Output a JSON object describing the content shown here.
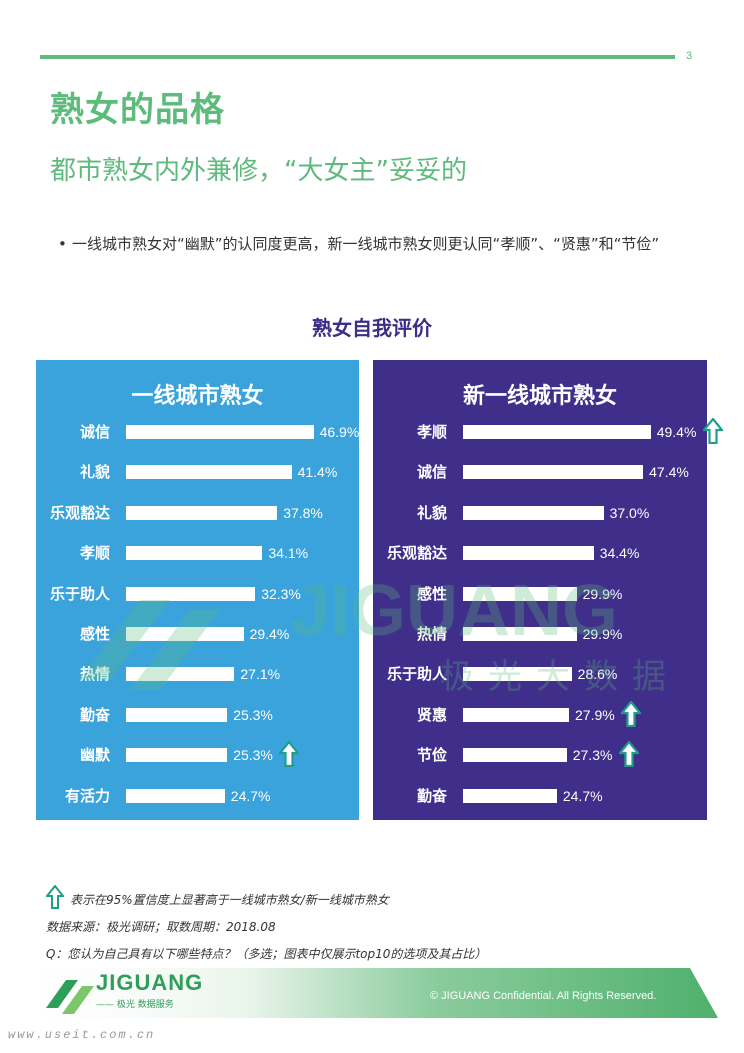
{
  "page_number": "3",
  "title": "熟女的品格",
  "subtitle": "都市熟女内外兼修，“大女主”妥妥的",
  "bullet": "一线城市熟女对“幽默”的认同度更高，新一线城市熟女则更认同“孝顺”、“贤惠”和“节俭”",
  "watermark": {
    "logo": "JIGUANG",
    "sub": "极光大数据"
  },
  "colors": {
    "accent": "#5dbb7b",
    "left_panel": "#3aa3dc",
    "right_panel": "#3f2f8a",
    "arrow": "#1f9e8a"
  },
  "chart_data": [
    {
      "type": "bar",
      "title": "熟女自我评价",
      "panel_title": "一线城市熟女",
      "categories": [
        "诚信",
        "礼貌",
        "乐观豁达",
        "孝顺",
        "乐于助人",
        "感性",
        "热情",
        "勤奋",
        "幽默",
        "有活力"
      ],
      "values": [
        46.9,
        41.4,
        37.8,
        34.1,
        32.3,
        29.4,
        27.1,
        25.3,
        25.3,
        24.7
      ],
      "labels": [
        "46.9%",
        "41.4%",
        "37.8%",
        "34.1%",
        "32.3%",
        "29.4%",
        "27.1%",
        "25.3%",
        "25.3%",
        "24.7%"
      ],
      "significant": [
        false,
        false,
        false,
        false,
        false,
        false,
        false,
        false,
        true,
        false
      ],
      "xlim": [
        0,
        50
      ]
    },
    {
      "type": "bar",
      "title": "熟女自我评价",
      "panel_title": "新一线城市熟女",
      "categories": [
        "孝顺",
        "诚信",
        "礼貌",
        "乐观豁达",
        "感性",
        "热情",
        "乐于助人",
        "贤惠",
        "节俭",
        "勤奋"
      ],
      "values": [
        49.4,
        47.4,
        37.0,
        34.4,
        29.9,
        29.9,
        28.6,
        27.9,
        27.3,
        24.7
      ],
      "labels": [
        "49.4%",
        "47.4%",
        "37.0%",
        "34.4%",
        "29.9%",
        "29.9%",
        "28.6%",
        "27.9%",
        "27.3%",
        "24.7%"
      ],
      "significant": [
        true,
        false,
        false,
        false,
        false,
        false,
        false,
        true,
        true,
        false
      ],
      "xlim": [
        0,
        50
      ]
    }
  ],
  "legend_text": "表示在95%置信度上显著高于一线城市熟女/新一线城市熟女",
  "source": "数据来源：极光调研；取数周期：2018.08",
  "question": "Q：您认为自己具有以下哪些特点？（多选；图表中仅展示top10的选项及其占比）",
  "footer": {
    "logo": "JIGUANG",
    "logo_sub": "—— 极光 数据服务",
    "copyright": "© JIGUANG Confidential. All Rights Reserved."
  },
  "site": "www.useit.com.cn"
}
